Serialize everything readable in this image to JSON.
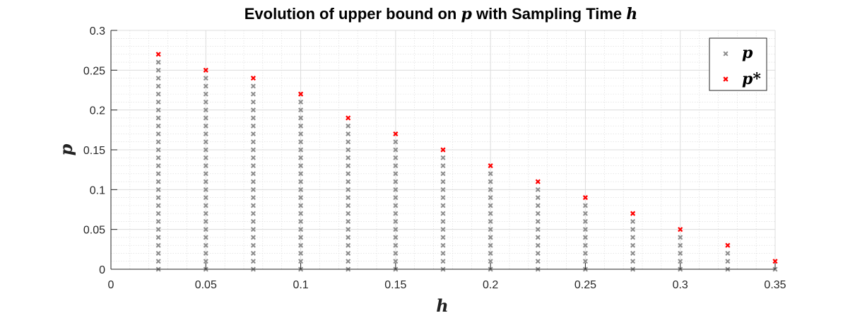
{
  "chart_data": {
    "type": "scatter",
    "title_prefix": "Evolution of upper bound on ",
    "title_var1": "p",
    "title_mid": " with Sampling Time ",
    "title_var2": "h",
    "xlabel": "h",
    "ylabel": "p",
    "xlim": [
      0,
      0.35
    ],
    "ylim": [
      0,
      0.3
    ],
    "xticks": [
      0,
      0.05,
      0.1,
      0.15,
      0.2,
      0.25,
      0.3,
      0.35
    ],
    "xtick_labels": [
      "0",
      "0.05",
      "0.1",
      "0.15",
      "0.2",
      "0.25",
      "0.3",
      "0.35"
    ],
    "yticks": [
      0,
      0.05,
      0.1,
      0.15,
      0.2,
      0.25,
      0.3
    ],
    "ytick_labels": [
      "0",
      "0.05",
      "0.1",
      "0.15",
      "0.2",
      "0.25",
      "0.3"
    ],
    "grid": true,
    "minor_grid": true,
    "legend_position": "top-right",
    "series": [
      {
        "name": "p",
        "color": "#8c8c8c",
        "marker": "x",
        "description": "feasible p values from 0 up to (p* - 0.01) in steps of 0.01 for each h",
        "step": 0.01,
        "h": [
          0.025,
          0.05,
          0.075,
          0.1,
          0.125,
          0.15,
          0.175,
          0.2,
          0.225,
          0.25,
          0.275,
          0.3,
          0.325,
          0.35
        ],
        "p_max": [
          0.26,
          0.24,
          0.23,
          0.21,
          0.18,
          0.16,
          0.14,
          0.12,
          0.1,
          0.08,
          0.06,
          0.04,
          0.02,
          0.0
        ]
      },
      {
        "name": "p*",
        "color": "#ff0000",
        "marker": "x",
        "h": [
          0.025,
          0.05,
          0.075,
          0.1,
          0.125,
          0.15,
          0.175,
          0.2,
          0.225,
          0.25,
          0.275,
          0.3,
          0.325,
          0.35
        ],
        "p": [
          0.27,
          0.25,
          0.24,
          0.22,
          0.19,
          0.17,
          0.15,
          0.13,
          0.11,
          0.09,
          0.07,
          0.05,
          0.03,
          0.01
        ]
      }
    ]
  }
}
